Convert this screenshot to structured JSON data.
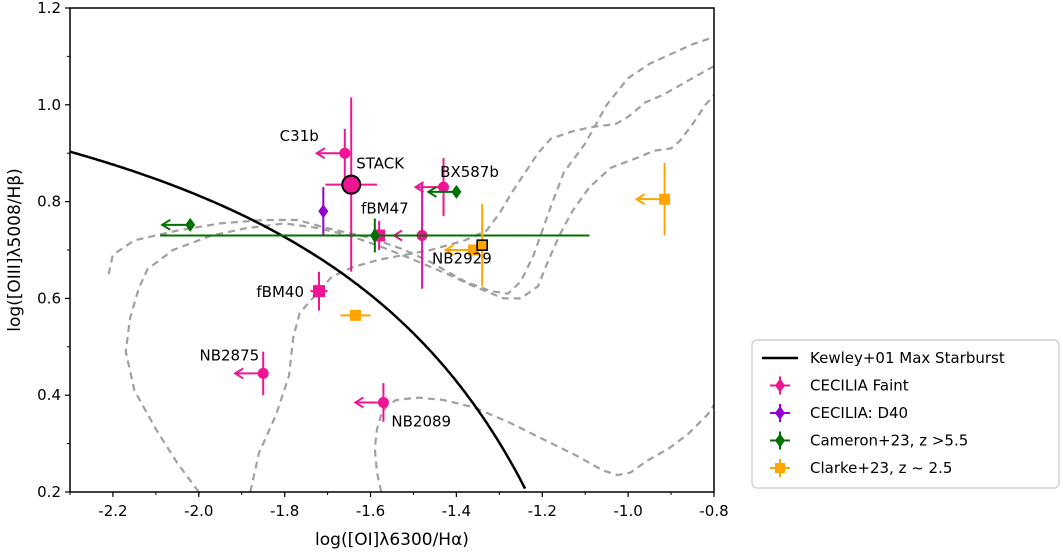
{
  "chart_data": {
    "type": "scatter",
    "xlabel": "log([OI]λ6300/Hα)",
    "ylabel": "log([OIII]λ5008/Hβ)",
    "xlim": [
      -2.3,
      -0.8
    ],
    "ylim": [
      0.2,
      1.2
    ],
    "xticks": [
      -2.2,
      -2.0,
      -1.8,
      -1.6,
      -1.4,
      -1.2,
      -1.0,
      -0.8
    ],
    "yticks": [
      0.2,
      0.4,
      0.6,
      0.8,
      1.0,
      1.2
    ],
    "xtick_labels": [
      "-2.2",
      "-2.0",
      "-1.8",
      "-1.6",
      "-1.4",
      "-1.2",
      "-1.0",
      "-0.8"
    ],
    "ytick_labels": [
      "0.2",
      "0.4",
      "0.6",
      "0.8",
      "1.0",
      "1.2"
    ],
    "colors": {
      "kewley": "#000000",
      "cecilia_faint": "#ee1493",
      "cecilia_d40": "#9400d3",
      "cameron": "#007000",
      "clarke": "#ffa500",
      "contour": "#a0a0a0",
      "stack_face": "#ee1493"
    },
    "legend": {
      "placement": "lower-right-outside",
      "entries": [
        {
          "label": "Kewley+01 Max Starburst",
          "kind": "line",
          "color_key": "kewley"
        },
        {
          "label": "CECILIA Faint",
          "kind": "diamond",
          "color_key": "cecilia_faint"
        },
        {
          "label": "CECILIA: D40",
          "kind": "diamond",
          "color_key": "cecilia_d40"
        },
        {
          "label": "Cameron+23, z >5.5",
          "kind": "diamond",
          "color_key": "cameron"
        },
        {
          "label": "Clarke+23, z ~ 2.5",
          "kind": "square",
          "color_key": "clarke"
        }
      ]
    },
    "series": [
      {
        "name": "CECILIA Faint",
        "marker": "circle",
        "color_key": "cecilia_faint",
        "points": [
          {
            "label": "C31b",
            "x": -1.66,
            "y": 0.9,
            "yerr": [
              0.05,
              0.05
            ],
            "upper_x": true
          },
          {
            "label": "BX587b",
            "x": -1.43,
            "y": 0.83,
            "yerr": [
              0.06,
              0.06
            ],
            "upper_x": true
          },
          {
            "label": "NB2929",
            "x": -1.48,
            "y": 0.73,
            "yerr": [
              0.11,
              0.11
            ],
            "upper_x": true
          },
          {
            "label": "NB2875",
            "x": -1.85,
            "y": 0.445,
            "yerr": [
              0.045,
              0.045
            ],
            "upper_x": true
          },
          {
            "label": "NB2089",
            "x": -1.57,
            "y": 0.385,
            "yerr": [
              0.04,
              0.04
            ],
            "upper_x": true
          }
        ]
      },
      {
        "name": "CECILIA Faint (plus)",
        "marker": "plus",
        "color_key": "cecilia_faint",
        "points": [
          {
            "label": "fBM47",
            "x": -1.58,
            "y": 0.73,
            "xerr": [
              0.02,
              0.02
            ],
            "yerr": [
              0.03,
              0.03
            ]
          },
          {
            "label": "fBM40",
            "x": -1.72,
            "y": 0.615,
            "xerr": [
              0.02,
              0.02
            ],
            "yerr": [
              0.04,
              0.04
            ]
          }
        ]
      },
      {
        "name": "STACK",
        "marker": "big-circle",
        "color_key": "stack_face",
        "points": [
          {
            "label": "STACK",
            "x": -1.645,
            "y": 0.835,
            "xerr": [
              0.06,
              0.06
            ],
            "yerr": [
              0.18,
              0.18
            ]
          }
        ]
      },
      {
        "name": "CECILIA: D40",
        "marker": "diamond",
        "color_key": "cecilia_d40",
        "points": [
          {
            "label": "",
            "x": -1.71,
            "y": 0.78,
            "yerr": [
              0.05,
              0.05
            ]
          }
        ]
      },
      {
        "name": "Cameron+23, z >5.5",
        "marker": "diamond",
        "color_key": "cameron",
        "points": [
          {
            "label": "",
            "x": -2.02,
            "y": 0.752,
            "upper_x": true
          },
          {
            "label": "",
            "x": -1.59,
            "y": 0.73,
            "xerr": [
              0.5,
              0.5
            ],
            "yerr": [
              0.035,
              0.035
            ]
          },
          {
            "label": "",
            "x": -1.4,
            "y": 0.82,
            "upper_x": true
          }
        ]
      },
      {
        "name": "Clarke+23, z ~ 2.5",
        "marker": "square",
        "color_key": "clarke",
        "points": [
          {
            "label": "",
            "x": -0.915,
            "y": 0.805,
            "yerr": [
              0.075,
              0.075
            ],
            "upper_x": true
          },
          {
            "label": "",
            "x": -1.36,
            "y": 0.7,
            "upper_x": true
          },
          {
            "label": "",
            "x": -1.635,
            "y": 0.565,
            "xerr": [
              0.035,
              0.035
            ]
          },
          {
            "label": "",
            "x": -1.34,
            "y": 0.71,
            "yerr": [
              0.085,
              0.085
            ],
            "boxed": true
          }
        ]
      }
    ],
    "kewley_curve": {
      "label": "Kewley+01 Max Starburst",
      "formula": "y = 0.73/(x + 0.59) + 1.33",
      "x_range": [
        -2.3,
        -1.24
      ]
    },
    "contours": [
      {
        "name": "outer",
        "points": [
          [
            -2.21,
            0.65
          ],
          [
            -2.2,
            0.69
          ],
          [
            -2.15,
            0.72
          ],
          [
            -2.05,
            0.74
          ],
          [
            -1.95,
            0.755
          ],
          [
            -1.85,
            0.762
          ],
          [
            -1.77,
            0.762
          ],
          [
            -1.7,
            0.745
          ],
          [
            -1.6,
            0.725
          ],
          [
            -1.52,
            0.7
          ],
          [
            -1.46,
            0.675
          ],
          [
            -1.42,
            0.655
          ],
          [
            -1.38,
            0.635
          ],
          [
            -1.32,
            0.615
          ],
          [
            -1.28,
            0.61
          ],
          [
            -1.25,
            0.635
          ],
          [
            -1.22,
            0.69
          ],
          [
            -1.18,
            0.79
          ],
          [
            -1.15,
            0.86
          ],
          [
            -1.1,
            0.92
          ],
          [
            -1.05,
            1.0
          ],
          [
            -1.0,
            1.055
          ],
          [
            -0.95,
            1.085
          ],
          [
            -0.9,
            1.105
          ],
          [
            -0.85,
            1.125
          ],
          [
            -0.8,
            1.14
          ]
        ]
      },
      {
        "name": "middle",
        "points": [
          [
            -1.88,
            0.2
          ],
          [
            -1.86,
            0.28
          ],
          [
            -1.82,
            0.36
          ],
          [
            -1.79,
            0.44
          ],
          [
            -1.78,
            0.52
          ],
          [
            -1.765,
            0.57
          ],
          [
            -1.72,
            0.615
          ],
          [
            -1.69,
            0.645
          ],
          [
            -1.64,
            0.665
          ],
          [
            -1.58,
            0.68
          ],
          [
            -1.52,
            0.69
          ],
          [
            -1.46,
            0.7
          ],
          [
            -1.38,
            0.72
          ],
          [
            -1.33,
            0.74
          ],
          [
            -1.3,
            0.775
          ],
          [
            -1.27,
            0.82
          ],
          [
            -1.24,
            0.86
          ],
          [
            -1.21,
            0.9
          ],
          [
            -1.18,
            0.93
          ],
          [
            -1.13,
            0.945
          ],
          [
            -1.08,
            0.955
          ],
          [
            -1.03,
            0.96
          ],
          [
            -1.0,
            0.975
          ],
          [
            -0.96,
            1.005
          ],
          [
            -0.92,
            1.02
          ],
          [
            -0.88,
            1.04
          ],
          [
            -0.83,
            1.065
          ],
          [
            -0.8,
            1.08
          ]
        ]
      },
      {
        "name": "inner",
        "points": [
          [
            -2.0,
            0.2
          ],
          [
            -2.05,
            0.26
          ],
          [
            -2.1,
            0.33
          ],
          [
            -2.15,
            0.41
          ],
          [
            -2.17,
            0.49
          ],
          [
            -2.16,
            0.56
          ],
          [
            -2.14,
            0.62
          ],
          [
            -2.12,
            0.66
          ],
          [
            -2.06,
            0.7
          ],
          [
            -1.97,
            0.73
          ],
          [
            -1.89,
            0.745
          ],
          [
            -1.8,
            0.755
          ],
          [
            -1.72,
            0.745
          ],
          [
            -1.65,
            0.73
          ],
          [
            -1.57,
            0.705
          ],
          [
            -1.5,
            0.68
          ],
          [
            -1.42,
            0.65
          ],
          [
            -1.36,
            0.625
          ],
          [
            -1.29,
            0.6
          ],
          [
            -1.25,
            0.6
          ],
          [
            -1.21,
            0.625
          ],
          [
            -1.19,
            0.67
          ],
          [
            -1.16,
            0.73
          ],
          [
            -1.13,
            0.78
          ],
          [
            -1.09,
            0.83
          ],
          [
            -1.04,
            0.87
          ],
          [
            -0.98,
            0.89
          ],
          [
            -0.94,
            0.905
          ],
          [
            -0.9,
            0.91
          ],
          [
            -0.88,
            0.925
          ],
          [
            -0.85,
            0.96
          ],
          [
            -0.82,
            1.0
          ],
          [
            -0.8,
            1.02
          ]
        ]
      },
      {
        "name": "lower",
        "points": [
          [
            -1.575,
            0.2
          ],
          [
            -1.585,
            0.24
          ],
          [
            -1.59,
            0.29
          ],
          [
            -1.585,
            0.33
          ],
          [
            -1.575,
            0.36
          ],
          [
            -1.56,
            0.38
          ],
          [
            -1.54,
            0.39
          ],
          [
            -1.49,
            0.395
          ],
          [
            -1.43,
            0.39
          ],
          [
            -1.36,
            0.375
          ],
          [
            -1.28,
            0.345
          ],
          [
            -1.2,
            0.31
          ],
          [
            -1.12,
            0.275
          ],
          [
            -1.06,
            0.245
          ],
          [
            -1.025,
            0.235
          ],
          [
            -0.995,
            0.24
          ],
          [
            -0.955,
            0.265
          ],
          [
            -0.905,
            0.29
          ],
          [
            -0.86,
            0.32
          ],
          [
            -0.815,
            0.36
          ],
          [
            -0.8,
            0.38
          ]
        ]
      }
    ]
  }
}
